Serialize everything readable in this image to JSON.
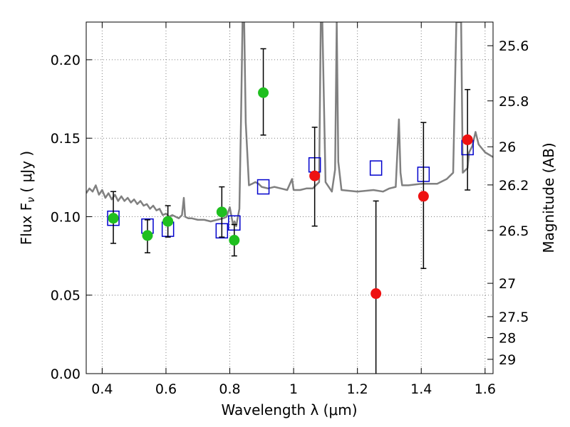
{
  "chart_data": {
    "type": "scatter",
    "xlabel": "Wavelength  λ (μm)",
    "ylabel": "Flux  F",
    "ylabel_sub": "ν",
    "ylabel_unit": "  ( μJy )",
    "y2label": "Magnitude (AB)",
    "xlim": [
      0.35,
      1.625
    ],
    "ylim": [
      0.0,
      0.224
    ],
    "grid": true,
    "x_ticks": [
      {
        "value": 0.4,
        "label": "0.4"
      },
      {
        "value": 0.6,
        "label": "0.6"
      },
      {
        "value": 0.8,
        "label": "0.8"
      },
      {
        "value": 1.0,
        "label": "1"
      },
      {
        "value": 1.2,
        "label": "1.2"
      },
      {
        "value": 1.4,
        "label": "1.4"
      },
      {
        "value": 1.6,
        "label": "1.6"
      }
    ],
    "y_ticks": [
      {
        "value": 0.0,
        "label": "0.00"
      },
      {
        "value": 0.05,
        "label": "0.05"
      },
      {
        "value": 0.1,
        "label": "0.10"
      },
      {
        "value": 0.15,
        "label": "0.15"
      },
      {
        "value": 0.2,
        "label": "0.20"
      }
    ],
    "y2_ticks": [
      {
        "value": 25.6,
        "label": "25.6"
      },
      {
        "value": 25.8,
        "label": "25.8"
      },
      {
        "value": 26.0,
        "label": "26"
      },
      {
        "value": 26.2,
        "label": "26.2"
      },
      {
        "value": 26.5,
        "label": "26.5"
      },
      {
        "value": 27.0,
        "label": "27"
      },
      {
        "value": 27.5,
        "label": "27.5"
      },
      {
        "value": 28.0,
        "label": "28"
      },
      {
        "value": 29.0,
        "label": "29"
      }
    ],
    "colors": {
      "model": "#808080",
      "green": "#1fbf1f",
      "red": "#ee1111",
      "box": "#0000cc",
      "errorbar": "#000000",
      "grid": "#7f7f7f"
    },
    "series": [
      {
        "style": "model-spectrum",
        "x": [
          0.35,
          0.36,
          0.37,
          0.38,
          0.39,
          0.4,
          0.41,
          0.42,
          0.43,
          0.44,
          0.45,
          0.46,
          0.47,
          0.48,
          0.49,
          0.5,
          0.51,
          0.52,
          0.53,
          0.54,
          0.55,
          0.56,
          0.57,
          0.58,
          0.59,
          0.6,
          0.61,
          0.62,
          0.63,
          0.64,
          0.65,
          0.656,
          0.66,
          0.67,
          0.68,
          0.7,
          0.72,
          0.74,
          0.76,
          0.78,
          0.79,
          0.8,
          0.81,
          0.815,
          0.82,
          0.83,
          0.835,
          0.84,
          0.845,
          0.85,
          0.86,
          0.87,
          0.88,
          0.89,
          0.9,
          0.92,
          0.94,
          0.96,
          0.98,
          0.995,
          1.0,
          1.01,
          1.02,
          1.04,
          1.06,
          1.08,
          1.085,
          1.09,
          1.1,
          1.12,
          1.13,
          1.135,
          1.14,
          1.15,
          1.2,
          1.25,
          1.28,
          1.3,
          1.32,
          1.33,
          1.335,
          1.34,
          1.36,
          1.4,
          1.45,
          1.48,
          1.5,
          1.51,
          1.52,
          1.525,
          1.53,
          1.545,
          1.55,
          1.56,
          1.57,
          1.58,
          1.6,
          1.625
        ],
        "y": [
          0.115,
          0.118,
          0.116,
          0.12,
          0.114,
          0.117,
          0.112,
          0.115,
          0.111,
          0.114,
          0.11,
          0.113,
          0.11,
          0.112,
          0.109,
          0.111,
          0.108,
          0.11,
          0.107,
          0.108,
          0.105,
          0.107,
          0.104,
          0.105,
          0.101,
          0.102,
          0.1,
          0.101,
          0.1,
          0.099,
          0.101,
          0.112,
          0.1,
          0.099,
          0.099,
          0.098,
          0.098,
          0.097,
          0.098,
          0.099,
          0.1,
          0.106,
          0.095,
          0.097,
          0.094,
          0.105,
          0.16,
          0.224,
          0.224,
          0.16,
          0.12,
          0.121,
          0.122,
          0.121,
          0.119,
          0.118,
          0.119,
          0.118,
          0.117,
          0.124,
          0.117,
          0.117,
          0.117,
          0.118,
          0.118,
          0.122,
          0.224,
          0.224,
          0.122,
          0.116,
          0.13,
          0.224,
          0.135,
          0.117,
          0.116,
          0.117,
          0.116,
          0.118,
          0.119,
          0.162,
          0.128,
          0.12,
          0.12,
          0.121,
          0.121,
          0.124,
          0.128,
          0.224,
          0.224,
          0.224,
          0.128,
          0.131,
          0.141,
          0.145,
          0.154,
          0.146,
          0.141,
          0.138
        ]
      },
      {
        "style": "green-circle",
        "points": [
          {
            "x": 0.435,
            "y": 0.099,
            "lo": 0.083,
            "hi": 0.116
          },
          {
            "x": 0.542,
            "y": 0.088,
            "lo": 0.077,
            "hi": 0.098
          },
          {
            "x": 0.606,
            "y": 0.097,
            "lo": 0.087,
            "hi": 0.107
          },
          {
            "x": 0.775,
            "y": 0.103,
            "lo": 0.087,
            "hi": 0.119
          },
          {
            "x": 0.814,
            "y": 0.085,
            "lo": 0.075,
            "hi": 0.095
          },
          {
            "x": 0.905,
            "y": 0.179,
            "lo": 0.152,
            "hi": 0.207
          }
        ]
      },
      {
        "style": "red-circle",
        "points": [
          {
            "x": 1.066,
            "y": 0.126,
            "lo": 0.094,
            "hi": 0.157
          },
          {
            "x": 1.258,
            "y": 0.051,
            "lo": -0.01,
            "hi": 0.11
          },
          {
            "x": 1.407,
            "y": 0.113,
            "lo": 0.067,
            "hi": 0.16
          },
          {
            "x": 1.545,
            "y": 0.149,
            "lo": 0.117,
            "hi": 0.181
          }
        ]
      },
      {
        "style": "blue-square",
        "points": [
          {
            "x": 0.435,
            "y": 0.099
          },
          {
            "x": 0.542,
            "y": 0.094
          },
          {
            "x": 0.606,
            "y": 0.092
          },
          {
            "x": 0.775,
            "y": 0.091
          },
          {
            "x": 0.814,
            "y": 0.096
          },
          {
            "x": 0.905,
            "y": 0.119
          },
          {
            "x": 1.066,
            "y": 0.133
          },
          {
            "x": 1.258,
            "y": 0.131
          },
          {
            "x": 1.407,
            "y": 0.127
          },
          {
            "x": 1.545,
            "y": 0.144
          }
        ]
      }
    ]
  }
}
